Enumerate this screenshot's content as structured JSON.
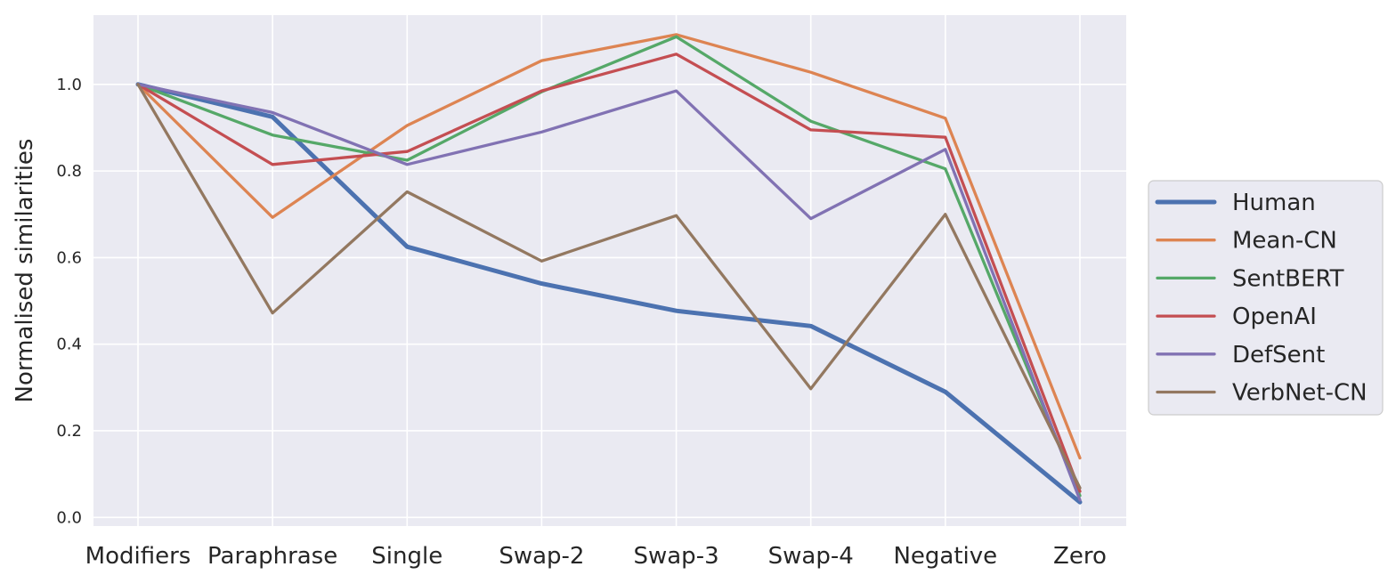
{
  "chart_data": {
    "type": "line",
    "title": "",
    "xlabel": "",
    "ylabel": "Normalised similarities",
    "categories": [
      "Modifiers",
      "Paraphrase",
      "Single",
      "Swap-2",
      "Swap-3",
      "Swap-4",
      "Negative",
      "Zero"
    ],
    "ylim": [
      -0.02,
      1.16
    ],
    "yticks": [
      "0.0",
      "0.2",
      "0.4",
      "0.6",
      "0.8",
      "1.0"
    ],
    "grid": true,
    "legend_position": "right",
    "series": [
      {
        "name": "Human",
        "color": "#4c72b0",
        "values": [
          1.0,
          0.925,
          0.625,
          0.54,
          0.477,
          0.442,
          0.29,
          0.035
        ]
      },
      {
        "name": "Mean-CN",
        "color": "#dd8452",
        "values": [
          1.0,
          0.693,
          0.905,
          1.055,
          1.115,
          1.028,
          0.922,
          0.137
        ]
      },
      {
        "name": "SentBERT",
        "color": "#55a868",
        "values": [
          1.0,
          0.883,
          0.825,
          0.983,
          1.11,
          0.915,
          0.805,
          0.05
        ]
      },
      {
        "name": "OpenAI",
        "color": "#c44e52",
        "values": [
          1.0,
          0.815,
          0.845,
          0.985,
          1.07,
          0.895,
          0.878,
          0.06
        ]
      },
      {
        "name": "DefSent",
        "color": "#8172b3",
        "values": [
          1.0,
          0.935,
          0.815,
          0.89,
          0.985,
          0.69,
          0.85,
          0.04
        ]
      },
      {
        "name": "VerbNet-CN",
        "color": "#937860",
        "values": [
          1.0,
          0.472,
          0.752,
          0.592,
          0.697,
          0.297,
          0.7,
          0.068
        ]
      }
    ]
  }
}
